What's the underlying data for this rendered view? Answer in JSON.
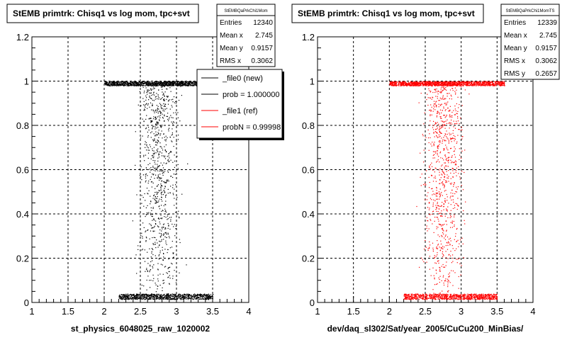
{
  "chart_data": [
    {
      "type": "scatter",
      "title": "StEMB primtrk: Chisq1 vs log mom, tpc+svt",
      "stats_title": "StEMBQaPrkChi1Mom",
      "stats": [
        {
          "label": "Entries",
          "value": "12340"
        },
        {
          "label": "Mean x",
          "value": "2.745"
        },
        {
          "label": "Mean y",
          "value": "0.9157"
        },
        {
          "label": "RMS x",
          "value": "0.3062"
        }
      ],
      "legend": [
        {
          "label": "_file0 (new)",
          "color": "#000000"
        },
        {
          "label": "prob = 1.000000",
          "color": "#000000"
        },
        {
          "label": "_file1 (ref)",
          "color": "#ff0000"
        },
        {
          "label": "probN = 0.99998",
          "color": "#ff0000"
        }
      ],
      "xlabel": "st_physics_6048025_raw_1020002",
      "ylabel": "",
      "xlim": [
        1,
        4
      ],
      "ylim": [
        0,
        1.2
      ],
      "x_ticks": [
        "1",
        "1.5",
        "2",
        "2.5",
        "3",
        "3.5",
        "4"
      ],
      "y_ticks": [
        "0",
        "0.2",
        "0.4",
        "0.6",
        "0.8",
        "1",
        "1.2"
      ],
      "grid": true,
      "marker_color": "#000000",
      "bands": [
        {
          "y": 1.0,
          "x_range": [
            2.0,
            3.6
          ]
        },
        {
          "y": 0.015,
          "x_range": [
            2.2,
            3.5
          ]
        }
      ],
      "scatter_x_range": [
        2.1,
        3.5
      ],
      "scatter_y_range": [
        0.02,
        0.99
      ]
    },
    {
      "type": "scatter",
      "title": "StEMB primtrk: Chisq1 vs log mom, tpc+svt",
      "stats_title": "StEMBQaPrkChi1MomTS",
      "stats": [
        {
          "label": "Entries",
          "value": "12339"
        },
        {
          "label": "Mean x",
          "value": "2.745"
        },
        {
          "label": "Mean y",
          "value": "0.9157"
        },
        {
          "label": "RMS x",
          "value": "0.3062"
        },
        {
          "label": "RMS y",
          "value": "0.2657"
        }
      ],
      "xlabel": "dev/daq_sl302/Sat/year_2005/CuCu200_MinBias/",
      "ylabel": "",
      "xlim": [
        1,
        4
      ],
      "ylim": [
        0,
        1.2
      ],
      "x_ticks": [
        "1",
        "1.5",
        "2",
        "2.5",
        "3",
        "3.5",
        "4"
      ],
      "y_ticks": [
        "0",
        "0.2",
        "0.4",
        "0.6",
        "0.8",
        "1",
        "1.2"
      ],
      "grid": true,
      "marker_color": "#ff0000",
      "bands": [
        {
          "y": 1.0,
          "x_range": [
            2.0,
            3.6
          ]
        },
        {
          "y": 0.015,
          "x_range": [
            2.2,
            3.5
          ]
        }
      ],
      "scatter_x_range": [
        2.1,
        3.5
      ],
      "scatter_y_range": [
        0.02,
        0.99
      ]
    }
  ]
}
